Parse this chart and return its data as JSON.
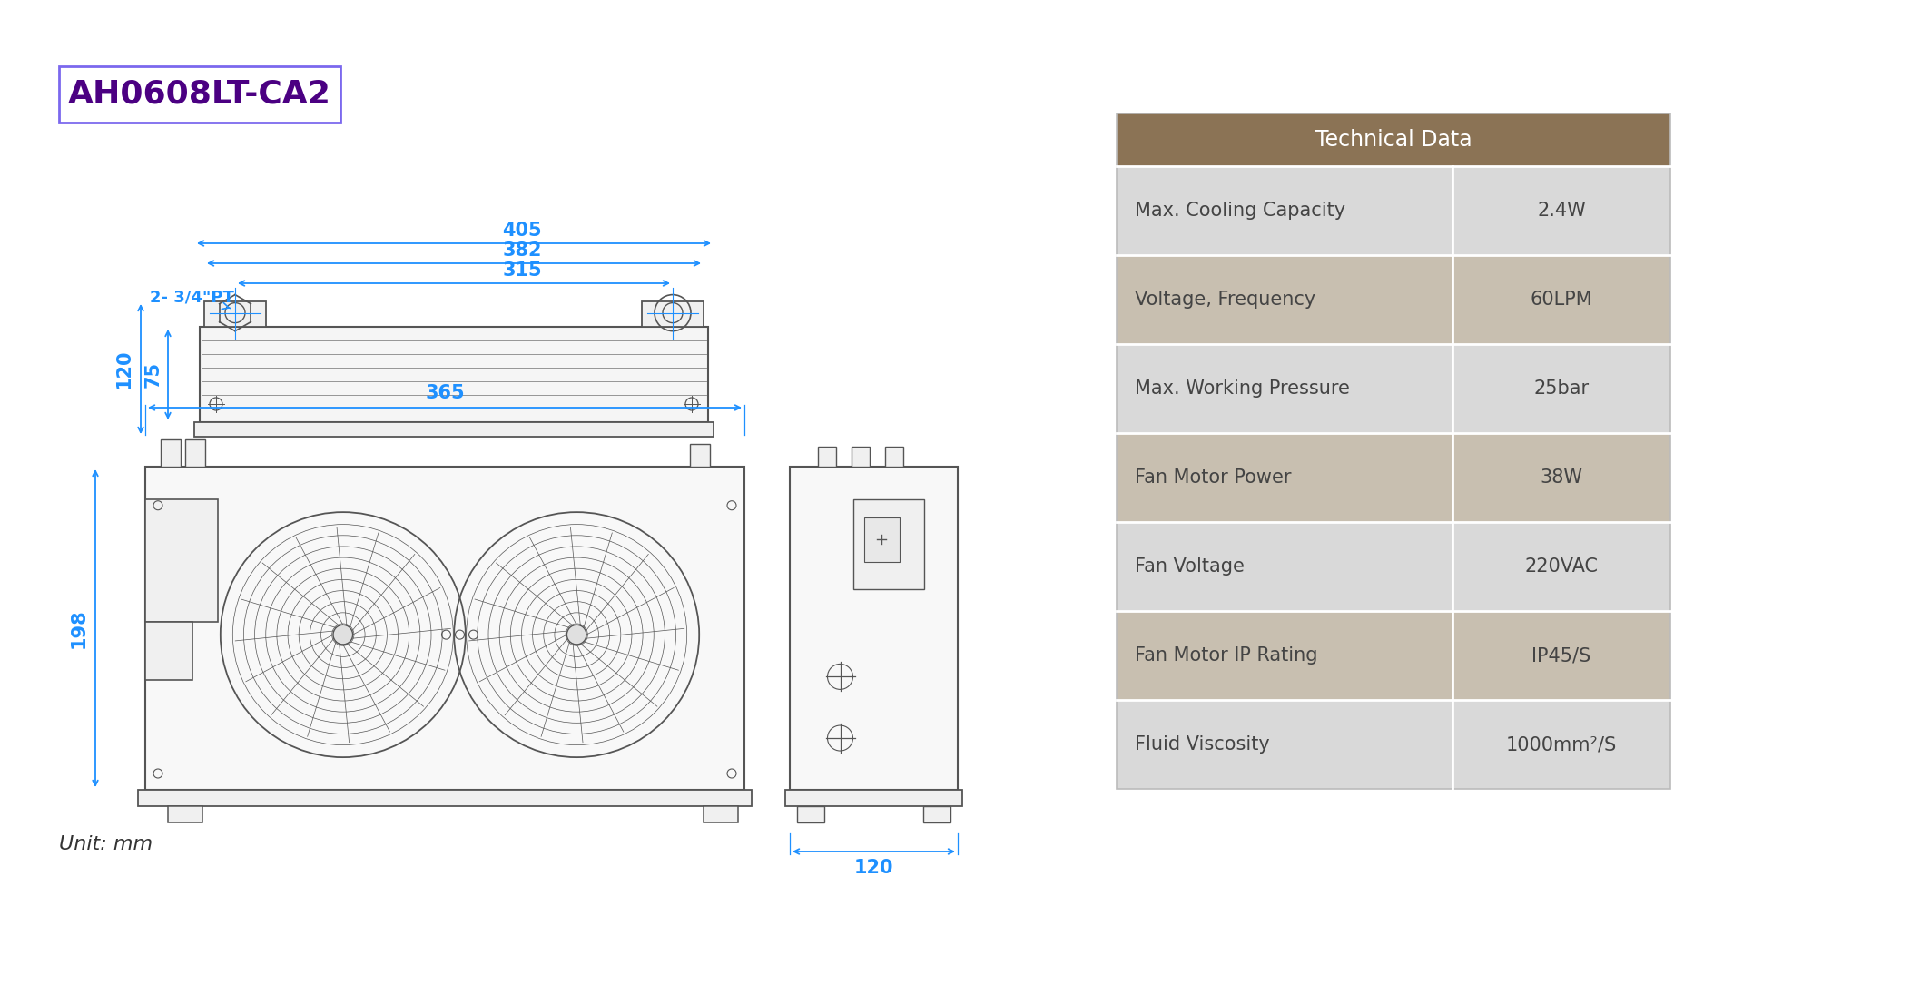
{
  "title": "AH0608LT-CA2",
  "title_color": "#4b0082",
  "title_box_color": "#7b68ee",
  "dim_color": "#1e90ff",
  "drawing_color": "#555555",
  "bg_color": "#ffffff",
  "table_header_bg": "#8B7355",
  "table_header_fg": "#ffffff",
  "table_row_odd_bg": "#d9d9d9",
  "table_row_even_bg": "#c8bfb0",
  "table_text_color": "#444444",
  "table_data": [
    [
      "Max. Cooling Capacity",
      "2.4W"
    ],
    [
      "Voltage, Frequency",
      "60LPM"
    ],
    [
      "Max. Working Pressure",
      "25bar"
    ],
    [
      "Fan Motor Power",
      "38W"
    ],
    [
      "Fan Voltage",
      "220VAC"
    ],
    [
      "Fan Motor IP Rating",
      "IP45/S"
    ],
    [
      "Fluid Viscosity",
      "1000mm²/S"
    ]
  ],
  "table_header": "Technical Data",
  "unit_text": "Unit: mm",
  "label_port": "2- 3/4\"PT"
}
